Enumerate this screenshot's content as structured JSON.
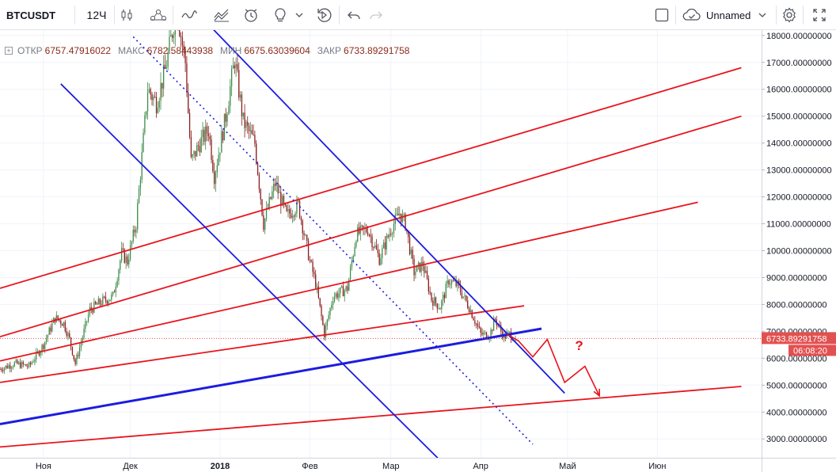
{
  "toolbar": {
    "symbol": "BTCUSDT",
    "interval": "12Ч",
    "layout_name": "Unnamed",
    "icons": [
      "candles-icon",
      "compare-icon",
      "indicators-icon",
      "templates-icon",
      "alert-icon",
      "ideas-icon",
      "replay-icon",
      "undo-icon",
      "redo-icon",
      "fullscreen-toggle-icon",
      "cloud-icon",
      "settings-icon",
      "expand-icon"
    ]
  },
  "legend": {
    "open_label": "ОТКР",
    "open_value": "6757.47916022",
    "high_label": "МАКС",
    "high_value": "6782.58443938",
    "low_label": "МИН",
    "low_value": "6675.63039604",
    "close_label": "ЗАКР",
    "close_value": "6733.89291758"
  },
  "price_axis": {
    "ticks": [
      "18000.00000000",
      "17000.00000000",
      "16000.00000000",
      "15000.00000000",
      "14000.00000000",
      "13000.00000000",
      "12000.00000000",
      "11000.00000000",
      "10000.00000000",
      "9000.00000000",
      "8000.00000000",
      "7000.00000000",
      "6000.00000000",
      "5000.00000000",
      "4000.00000000",
      "3000.00000000"
    ],
    "last_price_label": "6733.89291758",
    "countdown_label": "06:08:20"
  },
  "colors": {
    "up": "#3d8a48",
    "down": "#8b1a1a",
    "channel_red": "#e8141c",
    "channel_blue": "#1c1ce0",
    "last_price": "#e35050",
    "annotation": "#e8141c"
  },
  "chart_data": {
    "type": "candlestick",
    "symbol": "BTCUSDT",
    "interval": "12Ч",
    "y_range": [
      2300,
      18200
    ],
    "x_range": [
      "2017-10-17",
      "2018-07-07"
    ],
    "x_ticks": [
      {
        "date": "2017-11-01",
        "label": "Ноя"
      },
      {
        "date": "2017-12-01",
        "label": "Дек"
      },
      {
        "date": "2018-01-01",
        "label": "2018"
      },
      {
        "date": "2018-02-01",
        "label": "Фев"
      },
      {
        "date": "2018-03-01",
        "label": "Мар"
      },
      {
        "date": "2018-04-01",
        "label": "Апр"
      },
      {
        "date": "2018-05-01",
        "label": "Май"
      },
      {
        "date": "2018-06-01",
        "label": "Июн"
      }
    ],
    "price_path": [
      [
        "2017-10-17",
        5600
      ],
      [
        "2017-10-22",
        5800
      ],
      [
        "2017-10-27",
        5700
      ],
      [
        "2017-11-01",
        6500
      ],
      [
        "2017-11-05",
        7500
      ],
      [
        "2017-11-08",
        7300
      ],
      [
        "2017-11-10",
        6700
      ],
      [
        "2017-11-12",
        5800
      ],
      [
        "2017-11-14",
        6600
      ],
      [
        "2017-11-17",
        7800
      ],
      [
        "2017-11-21",
        8100
      ],
      [
        "2017-11-25",
        8300
      ],
      [
        "2017-11-28",
        9900
      ],
      [
        "2017-11-30",
        9600
      ],
      [
        "2017-12-03",
        11000
      ],
      [
        "2017-12-07",
        16000
      ],
      [
        "2017-12-10",
        15500
      ],
      [
        "2017-12-13",
        16700
      ],
      [
        "2017-12-17",
        19000
      ],
      [
        "2017-12-20",
        17000
      ],
      [
        "2017-12-22",
        13300
      ],
      [
        "2017-12-25",
        14000
      ],
      [
        "2017-12-28",
        14500
      ],
      [
        "2017-12-30",
        12800
      ],
      [
        "2018-01-03",
        15000
      ],
      [
        "2018-01-06",
        17100
      ],
      [
        "2018-01-09",
        14800
      ],
      [
        "2018-01-13",
        14000
      ],
      [
        "2018-01-16",
        11000
      ],
      [
        "2018-01-20",
        12500
      ],
      [
        "2018-01-24",
        11300
      ],
      [
        "2018-01-28",
        11700
      ],
      [
        "2018-02-01",
        9600
      ],
      [
        "2018-02-03",
        8800
      ],
      [
        "2018-02-06",
        6900
      ],
      [
        "2018-02-09",
        8300
      ],
      [
        "2018-02-14",
        8600
      ],
      [
        "2018-02-17",
        10600
      ],
      [
        "2018-02-21",
        10800
      ],
      [
        "2018-02-25",
        9700
      ],
      [
        "2018-03-01",
        10800
      ],
      [
        "2018-03-04",
        11400
      ],
      [
        "2018-03-06",
        11000
      ],
      [
        "2018-03-09",
        9200
      ],
      [
        "2018-03-12",
        9500
      ],
      [
        "2018-03-15",
        8200
      ],
      [
        "2018-03-18",
        7900
      ],
      [
        "2018-03-21",
        8900
      ],
      [
        "2018-03-24",
        8700
      ],
      [
        "2018-03-28",
        7900
      ],
      [
        "2018-04-01",
        6900
      ],
      [
        "2018-04-04",
        6850
      ],
      [
        "2018-04-06",
        7450
      ],
      [
        "2018-04-09",
        6800
      ],
      [
        "2018-04-11",
        6900
      ],
      [
        "2018-04-13",
        6733.89
      ]
    ],
    "last_candle": {
      "open": 6757.47916022,
      "high": 6782.58443938,
      "low": 6675.63039604,
      "close": 6733.89291758
    },
    "drawings": [
      {
        "kind": "red-channel-line",
        "from": [
          "2017-10-17",
          8600
        ],
        "to": [
          "2018-06-30",
          16800
        ]
      },
      {
        "kind": "red-channel-line",
        "from": [
          "2017-10-17",
          6800
        ],
        "to": [
          "2018-06-30",
          15000
        ]
      },
      {
        "kind": "red-channel-line",
        "from": [
          "2017-10-17",
          5900
        ],
        "to": [
          "2018-06-15",
          11800
        ]
      },
      {
        "kind": "red-channel-line",
        "from": [
          "2017-10-17",
          5100
        ],
        "to": [
          "2018-04-16",
          7950
        ]
      },
      {
        "kind": "red-channel-line",
        "from": [
          "2017-10-17",
          2700
        ],
        "to": [
          "2018-06-30",
          4950
        ]
      },
      {
        "kind": "blue-channel-line",
        "from": [
          "2017-11-07",
          16200
        ],
        "to": [
          "2018-03-18",
          2200
        ]
      },
      {
        "kind": "blue-channel-line",
        "from": [
          "2017-12-29",
          18300
        ],
        "to": [
          "2018-04-30",
          4700
        ]
      },
      {
        "kind": "blue-support-line",
        "from": [
          "2017-10-17",
          3550
        ],
        "to": [
          "2018-04-22",
          7100
        ]
      },
      {
        "kind": "blue-dotted-trendline",
        "from": [
          "2017-12-02",
          17950
        ],
        "to": [
          "2018-04-19",
          2800
        ]
      },
      {
        "kind": "red-forecast-path",
        "points": [
          [
            "2018-04-10",
            6900
          ],
          [
            "2018-04-14",
            6650
          ],
          [
            "2018-04-19",
            6050
          ],
          [
            "2018-04-24",
            6700
          ],
          [
            "2018-04-30",
            5100
          ],
          [
            "2018-05-07",
            5700
          ],
          [
            "2018-05-12",
            4600
          ]
        ]
      }
    ],
    "annotation": {
      "text": "?",
      "at": [
        "2018-05-05",
        6300
      ]
    }
  }
}
